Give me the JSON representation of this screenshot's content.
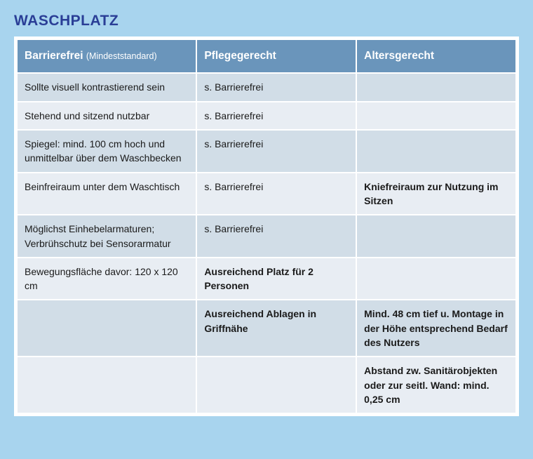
{
  "title": "WASCHPLATZ",
  "styling": {
    "page_bg": "#a8d4ee",
    "header_bg": "#6a95bb",
    "row_odd_bg": "#d1dde7",
    "row_even_bg": "#e8edf3",
    "title_color": "#2a3e96",
    "border_color": "#ffffff",
    "font_family": "Arial",
    "title_fontsize": 21,
    "header_fontsize": 15.5,
    "cell_fontsize": 14
  },
  "table": {
    "columns": [
      {
        "main": "Barrierefrei ",
        "sub": "(Mindeststandard)",
        "width": "36%"
      },
      {
        "main": "Pflegegerecht",
        "sub": "",
        "width": "32%"
      },
      {
        "main": "Altersgerecht",
        "sub": "",
        "width": "32%"
      }
    ],
    "rows": [
      {
        "c1": {
          "text": "Sollte visuell kontrastierend sein",
          "bold": false
        },
        "c2": {
          "text": "s. Barrierefrei",
          "bold": false
        },
        "c3": {
          "text": "",
          "bold": false
        }
      },
      {
        "c1": {
          "text": "Stehend und sitzend nutzbar",
          "bold": false
        },
        "c2": {
          "text": "s. Barrierefrei",
          "bold": false
        },
        "c3": {
          "text": "",
          "bold": false
        }
      },
      {
        "c1": {
          "text": "Spiegel: mind. 100 cm hoch und unmittelbar über dem Waschbecken",
          "bold": false
        },
        "c2": {
          "text": "s. Barrierefrei",
          "bold": false
        },
        "c3": {
          "text": "",
          "bold": false
        }
      },
      {
        "c1": {
          "text": "Beinfreiraum unter dem Waschtisch",
          "bold": false
        },
        "c2": {
          "text": "s. Barrierefrei",
          "bold": false
        },
        "c3": {
          "text": "Kniefreiraum zur Nutzung im Sitzen",
          "bold": true
        }
      },
      {
        "c1": {
          "text": "Möglichst Einhebelarmaturen; Verbrühschutz bei Sensorarmatur",
          "bold": false
        },
        "c2": {
          "text": "s. Barrierefrei",
          "bold": false
        },
        "c3": {
          "text": "",
          "bold": false
        }
      },
      {
        "c1": {
          "text": "Bewegungsfläche davor: 120 x 120 cm",
          "bold": false
        },
        "c2": {
          "text": "Ausreichend Platz für 2 Personen",
          "bold": true
        },
        "c3": {
          "text": "",
          "bold": false
        }
      },
      {
        "c1": {
          "text": "",
          "bold": false
        },
        "c2": {
          "text": "Ausreichend Ablagen in Griffnähe",
          "bold": true
        },
        "c3": {
          "text": "Mind. 48 cm tief u. Montage in der Höhe entsprechend Bedarf des Nutzers",
          "bold": true
        }
      },
      {
        "c1": {
          "text": "",
          "bold": false
        },
        "c2": {
          "text": "",
          "bold": false
        },
        "c3": {
          "text": "Abstand zw. Sanitärobjekten oder zur seitl. Wand: mind. 0,25 cm",
          "bold": true
        }
      }
    ]
  }
}
